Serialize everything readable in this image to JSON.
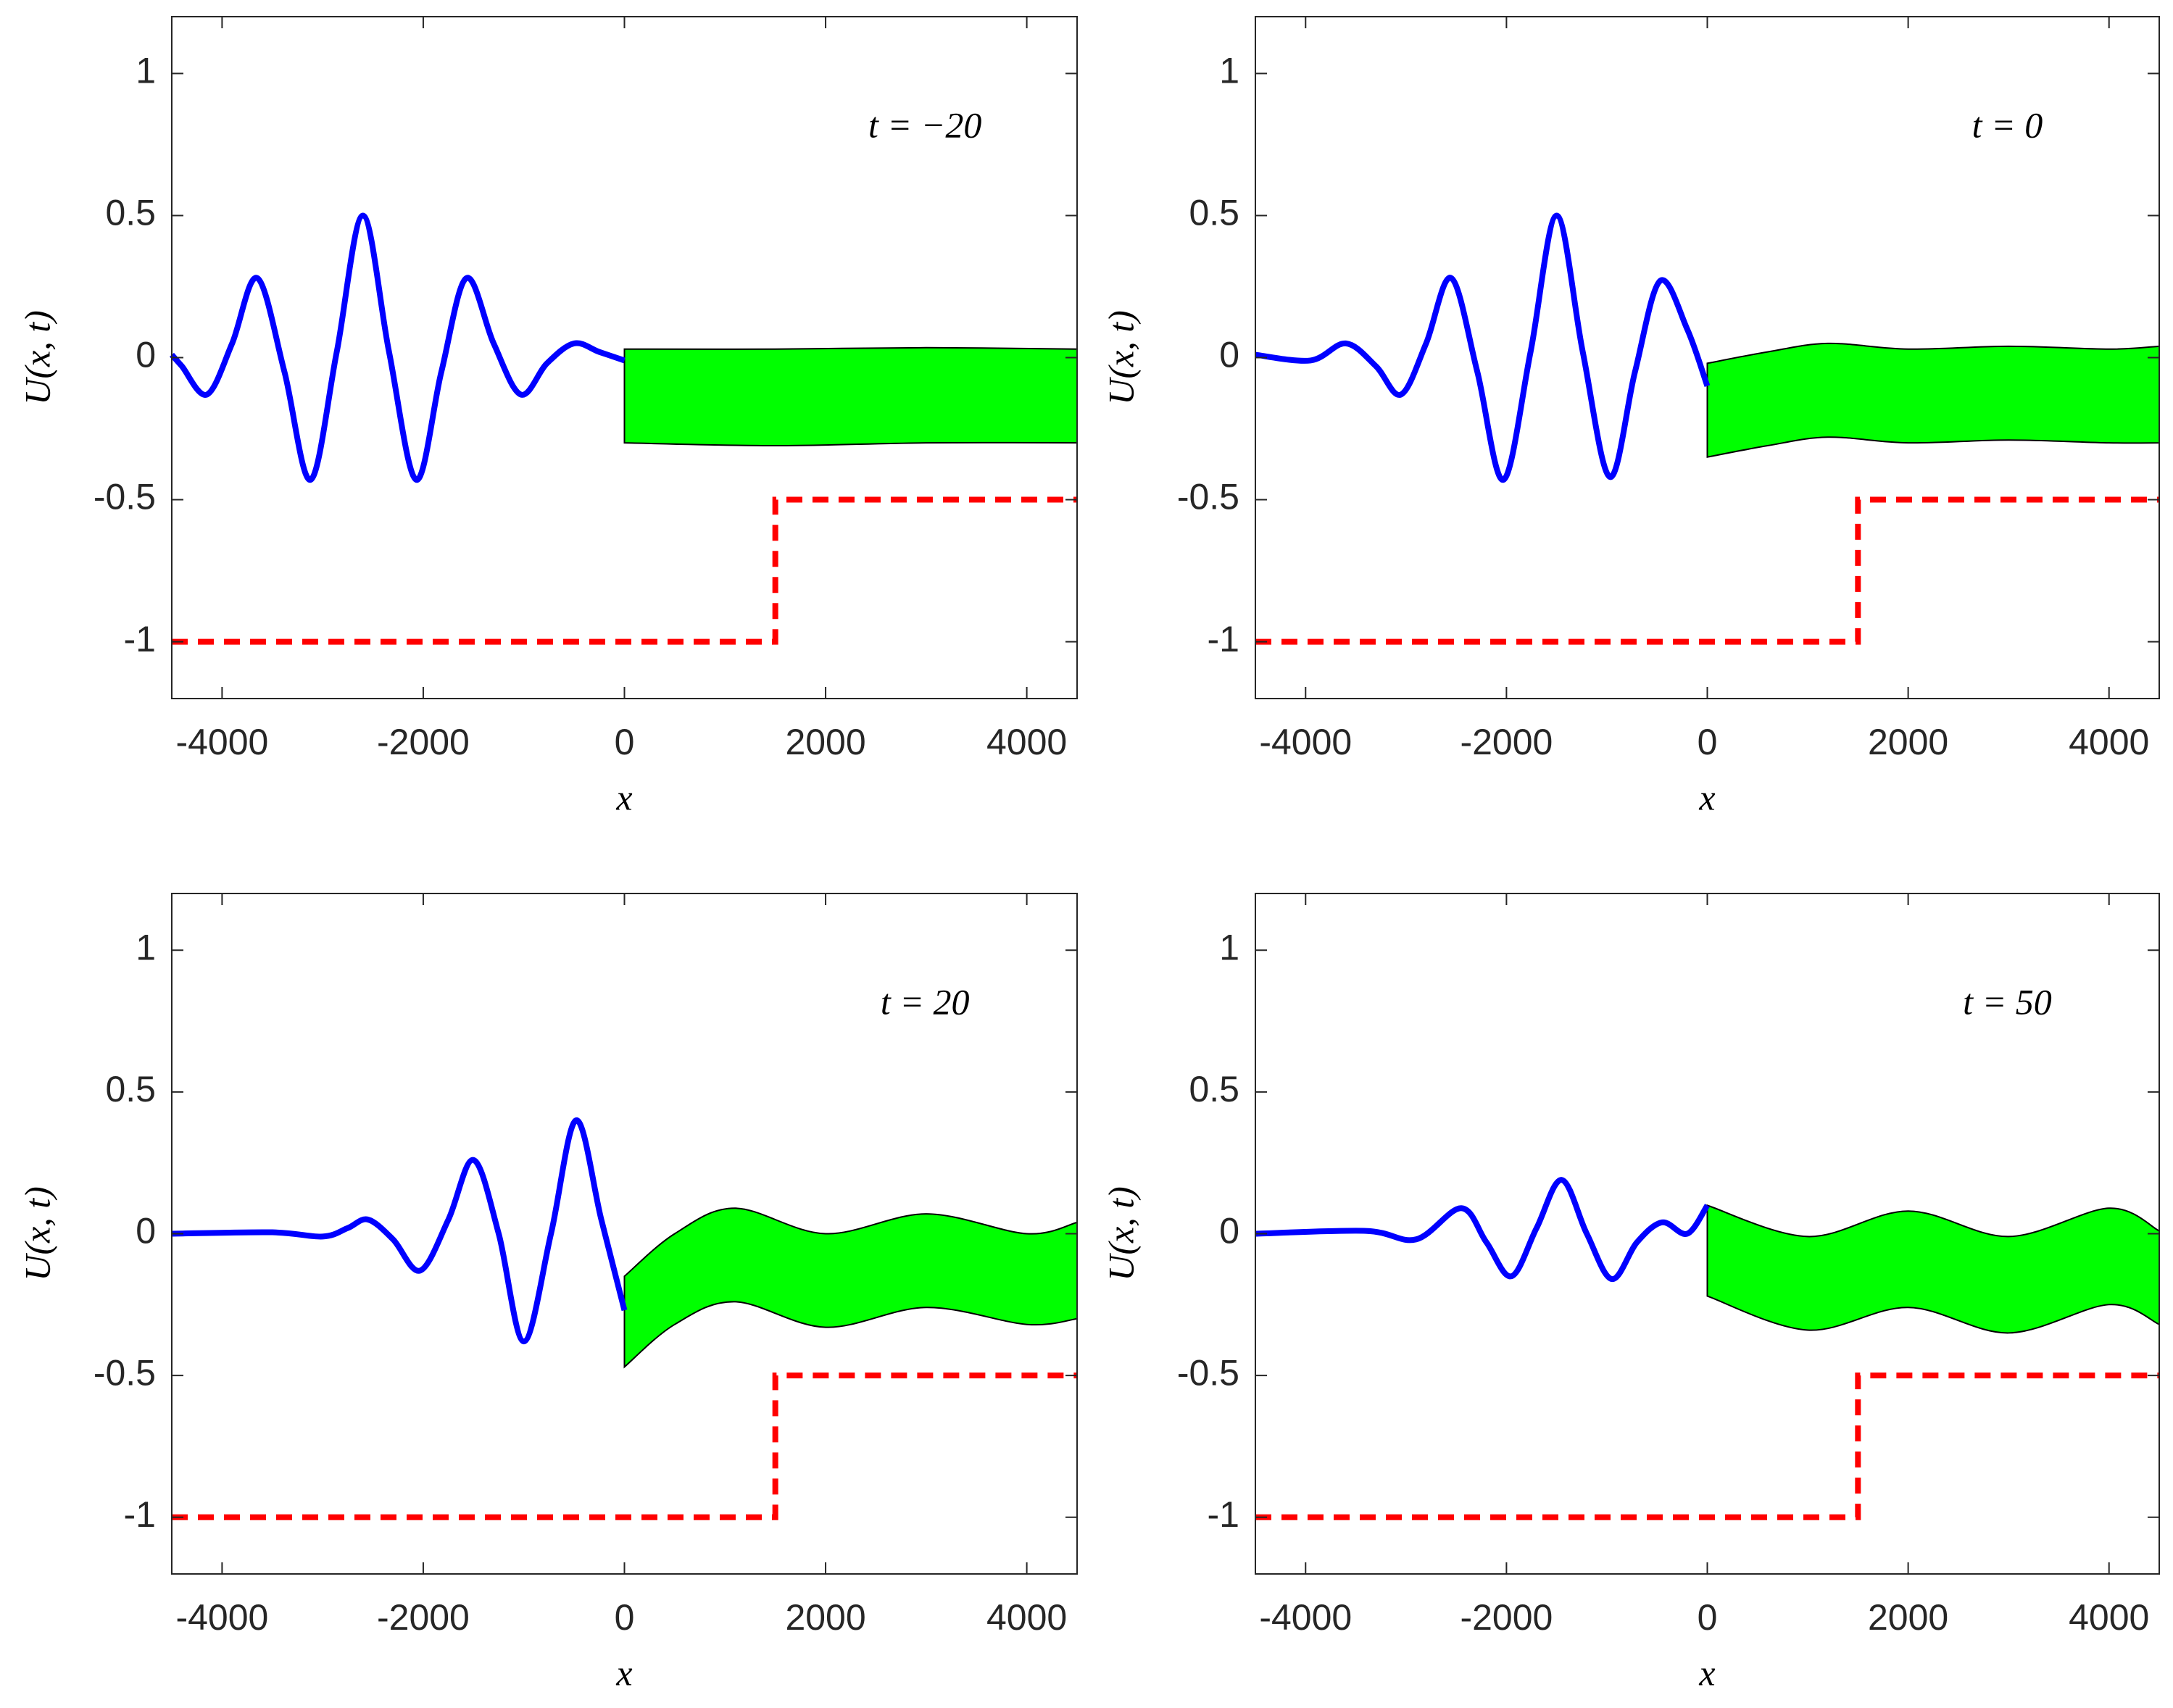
{
  "chart_data": [
    {
      "type": "line",
      "annotation": "t = −20",
      "xlabel": "x",
      "ylabel": "U(x, t)",
      "xlim": [
        -4500,
        4500
      ],
      "ylim": [
        -1.2,
        1.2
      ],
      "xticks": [
        -4000,
        -2000,
        0,
        2000,
        4000
      ],
      "yticks": [
        -1,
        -0.5,
        0,
        0.5,
        1
      ],
      "series": [
        {
          "color": "#0000ff",
          "x": [
            -4500,
            -4400,
            -4150,
            -3900,
            -3650,
            -3380,
            -3120,
            -2860,
            -2600,
            -2340,
            -2070,
            -1820,
            -1570,
            -1300,
            -1030,
            -770,
            -500,
            -250,
            0
          ],
          "values": [
            0.01,
            -0.03,
            -0.13,
            0.05,
            0.28,
            -0.05,
            -0.43,
            0.02,
            0.5,
            0.02,
            -0.43,
            -0.05,
            0.28,
            0.05,
            -0.13,
            -0.02,
            0.05,
            0.02,
            -0.01
          ]
        },
        {
          "color": "#ff0000",
          "dashed": true,
          "x": [
            -4500,
            1500,
            1500,
            4500
          ],
          "values": [
            -1,
            -1,
            -0.5,
            -0.5
          ]
        }
      ],
      "band": {
        "color": "#00ff00",
        "x": [
          0,
          1500,
          3000,
          4500
        ],
        "upper": [
          0.03,
          0.03,
          0.035,
          0.03
        ],
        "lower": [
          -0.3,
          -0.31,
          -0.3,
          -0.3
        ]
      }
    },
    {
      "type": "line",
      "annotation": "t = 0",
      "xlabel": "x",
      "ylabel": "U(x, t)",
      "xlim": [
        -4500,
        4500
      ],
      "ylim": [
        -1.2,
        1.2
      ],
      "xticks": [
        -4000,
        -2000,
        0,
        2000,
        4000
      ],
      "yticks": [
        -1,
        -0.5,
        0,
        0.5,
        1
      ],
      "series": [
        {
          "color": "#0000ff",
          "x": [
            -4500,
            -3950,
            -3600,
            -3300,
            -3050,
            -2800,
            -2550,
            -2290,
            -2030,
            -1760,
            -1500,
            -1240,
            -970,
            -720,
            -470,
            -200,
            0
          ],
          "values": [
            0.01,
            -0.01,
            0.05,
            -0.03,
            -0.13,
            0.05,
            0.28,
            -0.05,
            -0.43,
            0.02,
            0.5,
            0.02,
            -0.42,
            -0.05,
            0.27,
            0.1,
            -0.1
          ]
        },
        {
          "color": "#ff0000",
          "dashed": true,
          "x": [
            -4500,
            1500,
            1500,
            4500
          ],
          "values": [
            -1,
            -1,
            -0.5,
            -0.5
          ]
        }
      ],
      "band": {
        "color": "#00ff00",
        "x": [
          0,
          600,
          1200,
          2000,
          3000,
          4000,
          4500
        ],
        "upper": [
          -0.02,
          0.02,
          0.05,
          0.03,
          0.04,
          0.03,
          0.04
        ],
        "lower": [
          -0.35,
          -0.31,
          -0.28,
          -0.3,
          -0.29,
          -0.3,
          -0.3
        ]
      }
    },
    {
      "type": "line",
      "annotation": "t = 20",
      "xlabel": "x",
      "ylabel": "U(x, t)",
      "xlim": [
        -4500,
        4500
      ],
      "ylim": [
        -1.2,
        1.2
      ],
      "xticks": [
        -4000,
        -2000,
        0,
        2000,
        4000
      ],
      "yticks": [
        -1,
        -0.5,
        0,
        0.5,
        1
      ],
      "series": [
        {
          "color": "#0000ff",
          "x": [
            -4500,
            -3500,
            -3000,
            -2750,
            -2550,
            -2300,
            -2030,
            -1750,
            -1500,
            -1250,
            -1000,
            -730,
            -480,
            -230,
            0
          ],
          "values": [
            0,
            0.005,
            -0.01,
            0.02,
            0.05,
            -0.02,
            -0.13,
            0.05,
            0.26,
            0,
            -0.38,
            0,
            0.4,
            0.05,
            -0.27
          ]
        },
        {
          "color": "#ff0000",
          "dashed": true,
          "x": [
            -4500,
            1500,
            1500,
            4500
          ],
          "values": [
            -1,
            -1,
            -0.5,
            -0.5
          ]
        }
      ],
      "band": {
        "color": "#00ff00",
        "x": [
          0,
          500,
          1100,
          2000,
          3000,
          4000,
          4500
        ],
        "upper": [
          -0.15,
          0.0,
          0.09,
          0.0,
          0.07,
          0.0,
          0.04
        ],
        "lower": [
          -0.47,
          -0.32,
          -0.24,
          -0.33,
          -0.26,
          -0.32,
          -0.3
        ]
      }
    },
    {
      "type": "line",
      "annotation": "t = 50",
      "xlabel": "x",
      "ylabel": "U(x, t)",
      "xlim": [
        -4500,
        4500
      ],
      "ylim": [
        -1.2,
        1.2
      ],
      "xticks": [
        -4000,
        -2000,
        0,
        2000,
        4000
      ],
      "yticks": [
        -1,
        -0.5,
        0,
        0.5,
        1
      ],
      "series": [
        {
          "color": "#0000ff",
          "x": [
            -4500,
            -3400,
            -2900,
            -2450,
            -2200,
            -1950,
            -1700,
            -1450,
            -1200,
            -950,
            -700,
            -450,
            -200,
            0
          ],
          "values": [
            0,
            0.01,
            -0.02,
            0.09,
            -0.03,
            -0.15,
            0.02,
            0.19,
            0.0,
            -0.16,
            -0.03,
            0.04,
            0.0,
            0.1
          ]
        },
        {
          "color": "#ff0000",
          "dashed": true,
          "x": [
            -4500,
            1500,
            1500,
            4500
          ],
          "values": [
            -1,
            -1,
            -0.5,
            -0.5
          ]
        }
      ],
      "band": {
        "color": "#00ff00",
        "x": [
          0,
          1000,
          2000,
          3000,
          4000,
          4500
        ],
        "upper": [
          0.1,
          -0.01,
          0.08,
          -0.01,
          0.09,
          0.01
        ],
        "lower": [
          -0.22,
          -0.34,
          -0.26,
          -0.35,
          -0.25,
          -0.32
        ]
      }
    }
  ]
}
